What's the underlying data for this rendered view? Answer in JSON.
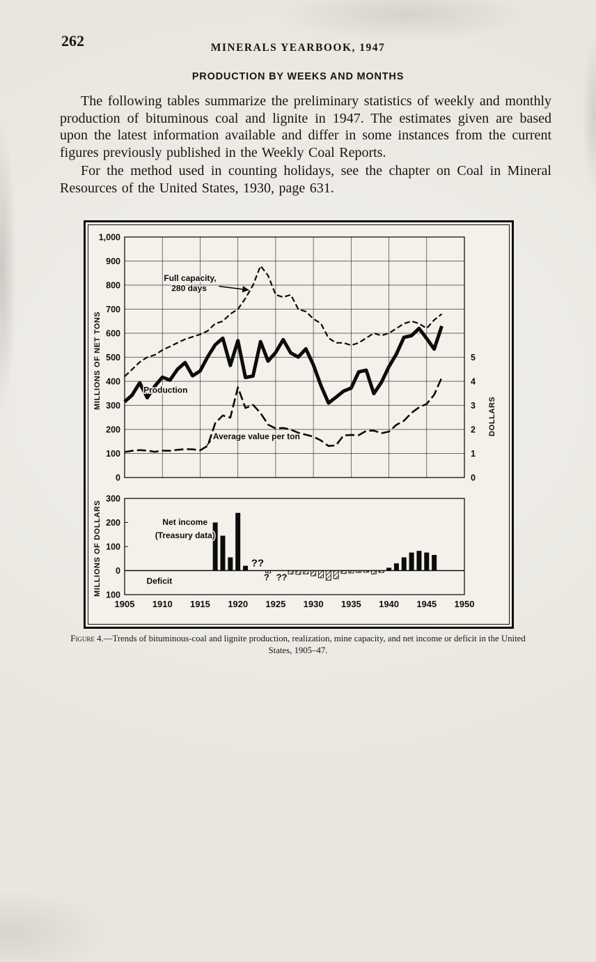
{
  "page": {
    "number": "262",
    "running_header": "MINERALS YEARBOOK, 1947",
    "section_heading": "PRODUCTION BY WEEKS AND MONTHS",
    "paragraph1": "The following tables summarize the preliminary statistics of weekly and monthly production of bituminous coal and lignite in 1947. The estimates given are based upon the latest information available and differ in some instances from the current figures previously published in the Weekly Coal Reports.",
    "paragraph2": "For the method used in counting holidays, see the chapter on Coal in Mineral Resources of the United States, 1930, page 631.",
    "figure_caption_prefix": "Figure 4.",
    "figure_caption_rest": "—Trends of bituminous-coal and lignite production, realization, mine capacity, and net income or deficit in the United States, 1905–47."
  },
  "chart_data": [
    {
      "type": "line",
      "ylabel": "MILLIONS OF NET TONS",
      "y2label": "DOLLARS",
      "xlim": [
        1905,
        1950
      ],
      "ylim": [
        0,
        1000
      ],
      "y2lim": [
        0,
        10
      ],
      "grid": true,
      "yticks": [
        "1,000",
        "900",
        "800",
        "700",
        "600",
        "500",
        "400",
        "300",
        "200",
        "100",
        "0"
      ],
      "y2ticks": [
        "5",
        "4",
        "3",
        "2",
        "1",
        "0"
      ],
      "x": [
        1905,
        1906,
        1907,
        1908,
        1909,
        1910,
        1911,
        1912,
        1913,
        1914,
        1915,
        1916,
        1917,
        1918,
        1919,
        1920,
        1921,
        1922,
        1923,
        1924,
        1925,
        1926,
        1927,
        1928,
        1929,
        1930,
        1931,
        1932,
        1933,
        1934,
        1935,
        1936,
        1937,
        1938,
        1939,
        1940,
        1941,
        1942,
        1943,
        1944,
        1945,
        1946,
        1947
      ],
      "series": [
        {
          "id": "capacity-line",
          "name": "Full capacity, 280 days",
          "style": "dashed",
          "values": [
            420,
            450,
            480,
            500,
            510,
            530,
            545,
            560,
            575,
            585,
            595,
            610,
            640,
            650,
            680,
            700,
            745,
            800,
            880,
            840,
            760,
            750,
            760,
            700,
            690,
            660,
            640,
            580,
            560,
            560,
            550,
            560,
            580,
            600,
            590,
            600,
            620,
            640,
            650,
            640,
            620,
            655,
            680
          ]
        },
        {
          "id": "production-line",
          "name": "Production",
          "style": "thick",
          "values": [
            315,
            343,
            394,
            332,
            380,
            417,
            405,
            450,
            478,
            423,
            443,
            502,
            552,
            579,
            466,
            569,
            416,
            422,
            565,
            484,
            520,
            573,
            518,
            501,
            535,
            468,
            382,
            310,
            334,
            359,
            372,
            439,
            446,
            349,
            395,
            461,
            514,
            583,
            590,
            620,
            578,
            534,
            630
          ]
        },
        {
          "id": "value-line",
          "name": "Average value per ton",
          "style": "long-dash",
          "axis": "dollars",
          "values": [
            1.06,
            1.11,
            1.14,
            1.12,
            1.07,
            1.12,
            1.11,
            1.15,
            1.18,
            1.17,
            1.13,
            1.32,
            2.26,
            2.58,
            2.49,
            3.75,
            2.89,
            3.02,
            2.68,
            2.2,
            2.04,
            2.06,
            1.99,
            1.86,
            1.78,
            1.7,
            1.54,
            1.31,
            1.34,
            1.75,
            1.77,
            1.76,
            1.94,
            1.95,
            1.84,
            1.91,
            2.19,
            2.36,
            2.69,
            2.92,
            3.06,
            3.44,
            4.16
          ]
        }
      ],
      "annotations": [
        {
          "text": "Full capacity,",
          "x": 1910.2,
          "y": 818,
          "anchor": "start"
        },
        {
          "text": "280 days",
          "x": 1911.2,
          "y": 775,
          "anchor": "start"
        },
        {
          "text": "Production",
          "x": 1907.5,
          "y": 352,
          "anchor": "start"
        },
        {
          "text": "Average value per ton",
          "x": 1916.7,
          "y": 160,
          "anchor": "start"
        }
      ],
      "leaders": [
        {
          "x1": 1917.5,
          "y1": 795,
          "x2": 1921.4,
          "y2": 780,
          "arrow": true
        },
        {
          "x1": 1916.4,
          "y1": 152,
          "x2": 1915.9,
          "y2": 134,
          "arrow": false
        }
      ]
    },
    {
      "type": "bar",
      "ylabel": "MILLIONS OF DOLLARS",
      "xlim": [
        1905,
        1950
      ],
      "ylim": [
        -100,
        300
      ],
      "yticks": [
        "300",
        "200",
        "100",
        "0",
        "100"
      ],
      "ytick_values": [
        300,
        200,
        100,
        0,
        -100
      ],
      "xticks": [
        "1905",
        "1910",
        "1915",
        "1920",
        "1925",
        "1930",
        "1935",
        "1940",
        "1945",
        "1950"
      ],
      "bars": [
        {
          "year": 1917,
          "value": 200
        },
        {
          "year": 1918,
          "value": 145
        },
        {
          "year": 1919,
          "value": 55
        },
        {
          "year": 1920,
          "value": 240
        },
        {
          "year": 1921,
          "value": 20
        },
        {
          "year": 1924,
          "value": -10
        },
        {
          "year": 1927,
          "value": -14
        },
        {
          "year": 1928,
          "value": -16
        },
        {
          "year": 1929,
          "value": -14
        },
        {
          "year": 1930,
          "value": -22
        },
        {
          "year": 1931,
          "value": -30
        },
        {
          "year": 1932,
          "value": -40
        },
        {
          "year": 1933,
          "value": -34
        },
        {
          "year": 1934,
          "value": -12
        },
        {
          "year": 1935,
          "value": -10
        },
        {
          "year": 1936,
          "value": -8
        },
        {
          "year": 1937,
          "value": -7
        },
        {
          "year": 1938,
          "value": -14
        },
        {
          "year": 1939,
          "value": -8
        },
        {
          "year": 1940,
          "value": 12
        },
        {
          "year": 1941,
          "value": 30
        },
        {
          "year": 1942,
          "value": 55
        },
        {
          "year": 1943,
          "value": 75
        },
        {
          "year": 1944,
          "value": 82
        },
        {
          "year": 1945,
          "value": 75
        },
        {
          "year": 1946,
          "value": 65
        }
      ],
      "annotations": [
        {
          "text": "Net income",
          "x": 1913,
          "y": 190,
          "anchor": "middle"
        },
        {
          "text": "(Treasury data)",
          "x": 1913,
          "y": 135,
          "anchor": "middle"
        },
        {
          "text": "Deficit",
          "x": 1909.6,
          "y": -55,
          "anchor": "middle"
        },
        {
          "text": "??",
          "x": 1922.6,
          "y": 18,
          "anchor": "middle",
          "size": 15
        },
        {
          "text": "?",
          "x": 1923.8,
          "y": -40,
          "anchor": "middle",
          "size": 13
        },
        {
          "text": "??",
          "x": 1925.8,
          "y": -40,
          "anchor": "middle",
          "size": 13
        }
      ]
    }
  ]
}
